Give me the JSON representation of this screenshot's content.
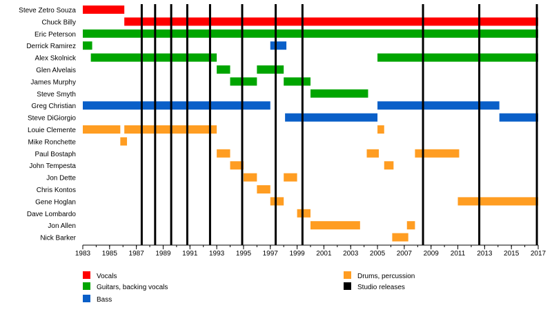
{
  "chart_data": {
    "type": "timeline",
    "title": "",
    "x_range": [
      1983,
      2017
    ],
    "x_ticks": [
      "1983",
      "1985",
      "1987",
      "1989",
      "1991",
      "1993",
      "1995",
      "1997",
      "1999",
      "2001",
      "2003",
      "2005",
      "2007",
      "2009",
      "2011",
      "2013",
      "2015",
      "2017"
    ],
    "colors": {
      "vocals": "#ff0000",
      "guitars": "#00a500",
      "bass": "#0a5fc8",
      "drums": "#ff9d22",
      "releases": "#000000"
    },
    "members": [
      "Steve Zetro Souza",
      "Chuck Billy",
      "Eric Peterson",
      "Derrick Ramirez",
      "Alex Skolnick",
      "Glen Alvelais",
      "James Murphy",
      "Steve Smyth",
      "Greg Christian",
      "Steve DiGiorgio",
      "Louie Clemente",
      "Mike Ronchette",
      "Paul Bostaph",
      "John Tempesta",
      "Jon Dette",
      "Chris Kontos",
      "Gene Hoglan",
      "Dave Lombardo",
      "Jon Allen",
      "Nick Barker"
    ],
    "bars": [
      {
        "member": 0,
        "role": "vocals",
        "start": 1983.0,
        "end": 1986.1
      },
      {
        "member": 1,
        "role": "vocals",
        "start": 1986.1,
        "end": 2017.0
      },
      {
        "member": 2,
        "role": "guitars",
        "start": 1983.0,
        "end": 2017.0
      },
      {
        "member": 3,
        "role": "guitars",
        "start": 1983.0,
        "end": 1983.7
      },
      {
        "member": 3,
        "role": "bass",
        "start": 1997.0,
        "end": 1998.2
      },
      {
        "member": 4,
        "role": "guitars",
        "start": 1983.6,
        "end": 1993.0
      },
      {
        "member": 4,
        "role": "guitars",
        "start": 2005.0,
        "end": 2017.0
      },
      {
        "member": 5,
        "role": "guitars",
        "start": 1993.0,
        "end": 1994.0
      },
      {
        "member": 5,
        "role": "guitars",
        "start": 1996.0,
        "end": 1998.0
      },
      {
        "member": 6,
        "role": "guitars",
        "start": 1994.0,
        "end": 1996.0
      },
      {
        "member": 6,
        "role": "guitars",
        "start": 1998.0,
        "end": 2000.0
      },
      {
        "member": 7,
        "role": "guitars",
        "start": 2000.0,
        "end": 2004.3
      },
      {
        "member": 8,
        "role": "bass",
        "start": 1983.0,
        "end": 1997.0
      },
      {
        "member": 8,
        "role": "bass",
        "start": 2005.0,
        "end": 2014.1
      },
      {
        "member": 9,
        "role": "bass",
        "start": 1998.1,
        "end": 2005.0
      },
      {
        "member": 9,
        "role": "bass",
        "start": 2014.1,
        "end": 2017.0
      },
      {
        "member": 10,
        "role": "drums",
        "start": 1983.0,
        "end": 1985.8
      },
      {
        "member": 10,
        "role": "drums",
        "start": 1986.1,
        "end": 1993.0
      },
      {
        "member": 10,
        "role": "drums",
        "start": 2005.0,
        "end": 2005.5
      },
      {
        "member": 11,
        "role": "drums",
        "start": 1985.8,
        "end": 1986.3
      },
      {
        "member": 12,
        "role": "drums",
        "start": 1993.0,
        "end": 1994.0
      },
      {
        "member": 12,
        "role": "drums",
        "start": 2004.2,
        "end": 2005.1
      },
      {
        "member": 12,
        "role": "drums",
        "start": 2007.8,
        "end": 2011.1
      },
      {
        "member": 13,
        "role": "drums",
        "start": 1994.0,
        "end": 1995.0
      },
      {
        "member": 13,
        "role": "drums",
        "start": 2005.5,
        "end": 2006.2
      },
      {
        "member": 14,
        "role": "drums",
        "start": 1995.0,
        "end": 1996.0
      },
      {
        "member": 14,
        "role": "drums",
        "start": 1998.0,
        "end": 1999.0
      },
      {
        "member": 15,
        "role": "drums",
        "start": 1996.0,
        "end": 1997.0
      },
      {
        "member": 16,
        "role": "drums",
        "start": 1997.0,
        "end": 1998.0
      },
      {
        "member": 16,
        "role": "drums",
        "start": 2011.0,
        "end": 2017.0
      },
      {
        "member": 17,
        "role": "drums",
        "start": 1999.0,
        "end": 2000.0
      },
      {
        "member": 18,
        "role": "drums",
        "start": 2000.0,
        "end": 2003.7
      },
      {
        "member": 18,
        "role": "drums",
        "start": 2007.2,
        "end": 2007.8
      },
      {
        "member": 19,
        "role": "drums",
        "start": 2006.1,
        "end": 2007.3
      }
    ],
    "studio_releases": [
      1987.4,
      1988.4,
      1989.6,
      1990.8,
      1992.5,
      1994.9,
      1997.4,
      1999.4,
      2008.4,
      2012.6,
      2016.9
    ],
    "legend": [
      {
        "key": "vocals",
        "label": "Vocals"
      },
      {
        "key": "guitars",
        "label": "Guitars, backing vocals"
      },
      {
        "key": "bass",
        "label": "Bass"
      },
      {
        "key": "drums",
        "label": "Drums, percussion"
      },
      {
        "key": "releases",
        "label": "Studio releases"
      }
    ]
  }
}
